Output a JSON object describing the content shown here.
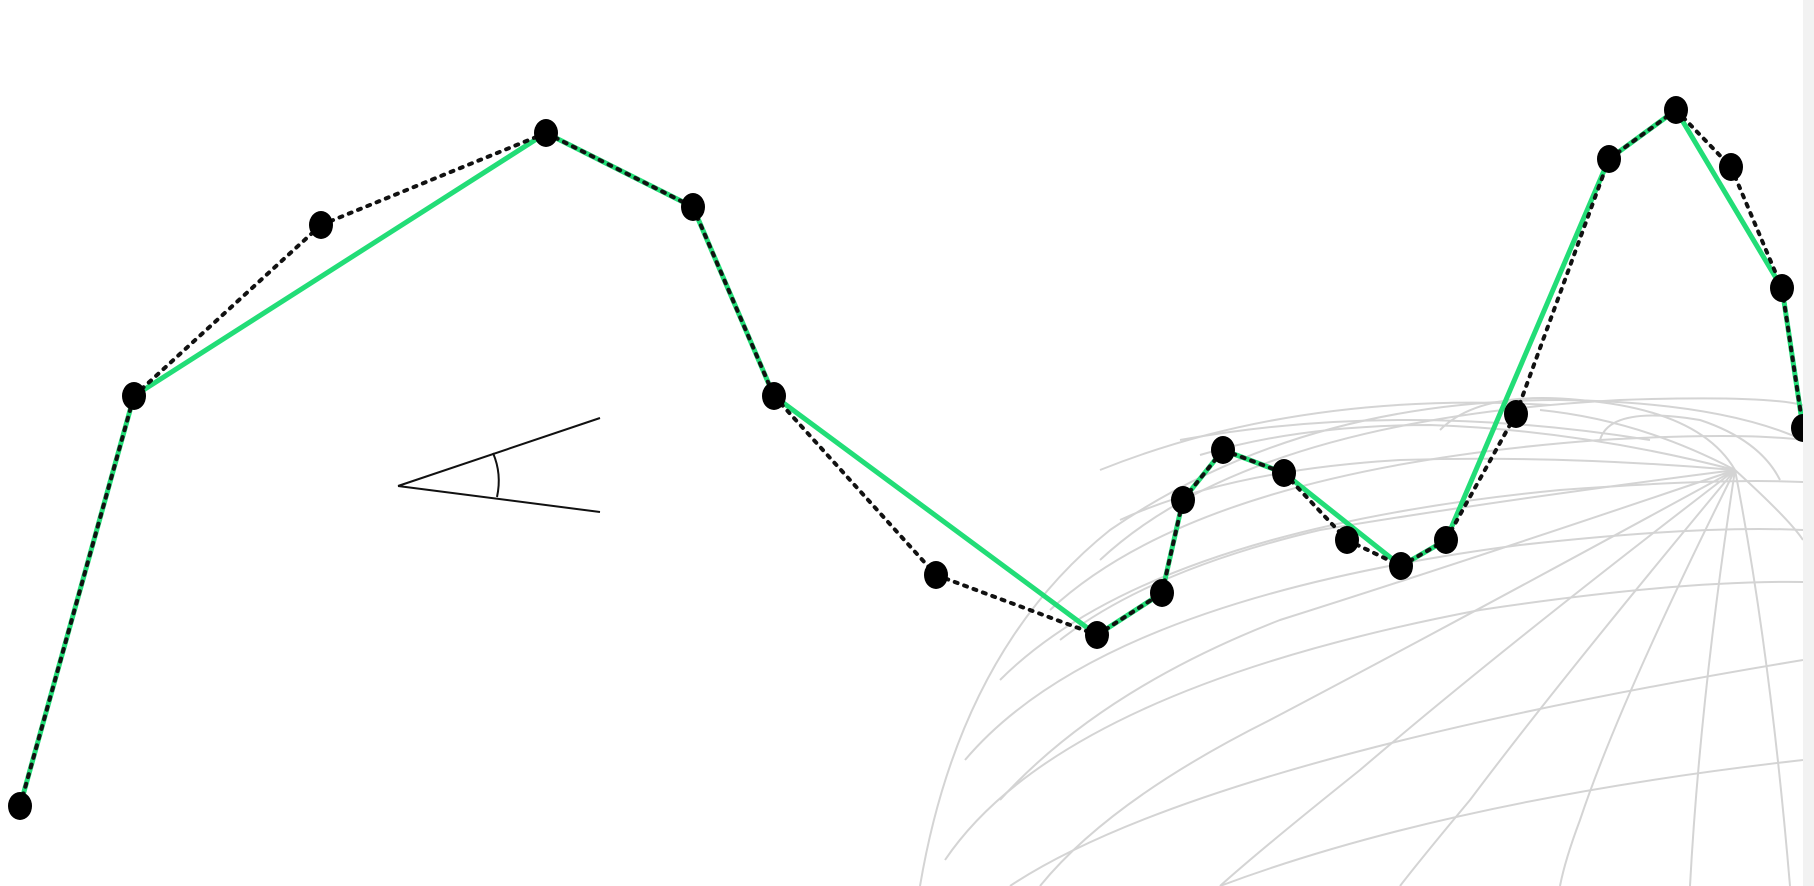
{
  "colors": {
    "background": "#ffffff",
    "globe_grid": "#d4d4d4",
    "simplified_path": "#22dd77",
    "original_path": "#111111",
    "vertex": "#000000",
    "angle_symbol": "#111111"
  }
}
